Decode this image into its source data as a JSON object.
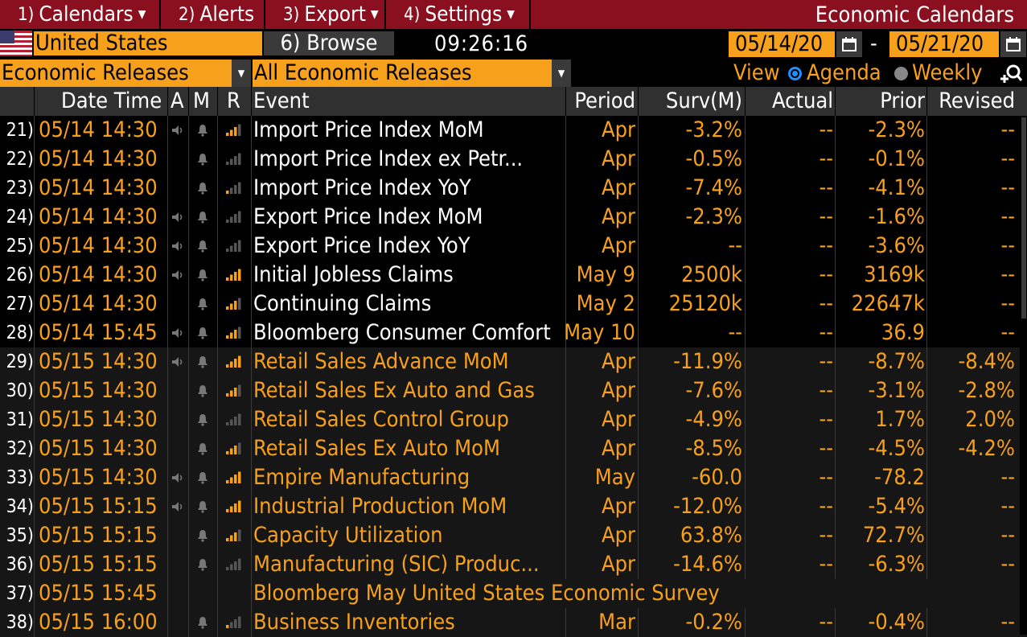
{
  "menubar": {
    "items": [
      {
        "num": "1)",
        "label": "Calendars",
        "caret": true
      },
      {
        "num": "2)",
        "label": "Alerts",
        "caret": false
      },
      {
        "num": "3)",
        "label": "Export",
        "caret": true
      },
      {
        "num": "4)",
        "label": "Settings",
        "caret": true
      }
    ],
    "title": "Economic Calendars"
  },
  "toolbar": {
    "country": "United States",
    "browse": "6) Browse",
    "clock": "09:26:16",
    "date_from": "05/14/20",
    "date_to": "05/21/20",
    "date_dash": "-"
  },
  "filters": {
    "category": "Economic Releases",
    "subcategory": "All Economic Releases",
    "view_label": "View",
    "view_options": [
      {
        "label": "Agenda",
        "selected": true
      },
      {
        "label": "Weekly",
        "selected": false
      }
    ]
  },
  "colors": {
    "accent": "#f7a01c",
    "menubar": "#8a1020",
    "header_bg": "#303030"
  },
  "table": {
    "headers": {
      "datetime": "Date Time",
      "a": "A",
      "m": "M",
      "r": "R",
      "event": "Event",
      "period": "Period",
      "surv": "Surv(M)",
      "actual": "Actual",
      "prior": "Prior",
      "revised": "Revised"
    },
    "rows": [
      {
        "num": "21)",
        "datetime": "05/14 14:30",
        "alert": "speaker-icon",
        "bell": true,
        "rel": 3,
        "event": "Import Price Index MoM",
        "period": "Apr",
        "surv": "-3.2%",
        "actual": "--",
        "prior": "-2.3%",
        "revised": "--",
        "highlight": false
      },
      {
        "num": "22)",
        "datetime": "05/14 14:30",
        "alert": "",
        "bell": true,
        "rel": 0,
        "event": "Import Price Index ex Petr...",
        "period": "Apr",
        "surv": "-0.5%",
        "actual": "--",
        "prior": "-0.1%",
        "revised": "--",
        "highlight": false
      },
      {
        "num": "23)",
        "datetime": "05/14 14:30",
        "alert": "",
        "bell": true,
        "rel": 1,
        "event": "Import Price Index YoY",
        "period": "Apr",
        "surv": "-7.4%",
        "actual": "--",
        "prior": "-4.1%",
        "revised": "--",
        "highlight": false
      },
      {
        "num": "24)",
        "datetime": "05/14 14:30",
        "alert": "speaker-icon",
        "bell": true,
        "rel": 0,
        "event": "Export Price Index MoM",
        "period": "Apr",
        "surv": "-2.3%",
        "actual": "--",
        "prior": "-1.6%",
        "revised": "--",
        "highlight": false
      },
      {
        "num": "25)",
        "datetime": "05/14 14:30",
        "alert": "speaker-icon",
        "bell": true,
        "rel": 0,
        "event": "Export Price Index YoY",
        "period": "Apr",
        "surv": "--",
        "actual": "--",
        "prior": "-3.6%",
        "revised": "--",
        "highlight": false
      },
      {
        "num": "26)",
        "datetime": "05/14 14:30",
        "alert": "speaker-icon",
        "bell": true,
        "rel": 4,
        "event": "Initial Jobless Claims",
        "period": "May 9",
        "surv": "2500k",
        "actual": "--",
        "prior": "3169k",
        "revised": "--",
        "highlight": false
      },
      {
        "num": "27)",
        "datetime": "05/14 14:30",
        "alert": "",
        "bell": true,
        "rel": 3,
        "event": "Continuing Claims",
        "period": "May 2",
        "surv": "25120k",
        "actual": "--",
        "prior": "22647k",
        "revised": "--",
        "highlight": false
      },
      {
        "num": "28)",
        "datetime": "05/14 15:45",
        "alert": "speaker-icon",
        "bell": true,
        "rel": 3,
        "event": "Bloomberg Consumer Comfort",
        "period": "May 10",
        "surv": "--",
        "actual": "--",
        "prior": "36.9",
        "revised": "--",
        "highlight": false
      },
      {
        "num": "29)",
        "datetime": "05/15 14:30",
        "alert": "speaker-icon",
        "bell": true,
        "rel": 4,
        "event": "Retail Sales Advance MoM",
        "period": "Apr",
        "surv": "-11.9%",
        "actual": "--",
        "prior": "-8.7%",
        "revised": "-8.4%",
        "highlight": true
      },
      {
        "num": "30)",
        "datetime": "05/15 14:30",
        "alert": "",
        "bell": true,
        "rel": 3,
        "event": "Retail Sales Ex Auto and Gas",
        "period": "Apr",
        "surv": "-7.6%",
        "actual": "--",
        "prior": "-3.1%",
        "revised": "-2.8%",
        "highlight": true
      },
      {
        "num": "31)",
        "datetime": "05/15 14:30",
        "alert": "",
        "bell": true,
        "rel": 0,
        "event": "Retail Sales Control Group",
        "period": "Apr",
        "surv": "-4.9%",
        "actual": "--",
        "prior": "1.7%",
        "revised": "2.0%",
        "highlight": true
      },
      {
        "num": "32)",
        "datetime": "05/15 14:30",
        "alert": "",
        "bell": true,
        "rel": 3,
        "event": "Retail Sales Ex Auto MoM",
        "period": "Apr",
        "surv": "-8.5%",
        "actual": "--",
        "prior": "-4.5%",
        "revised": "-4.2%",
        "highlight": true
      },
      {
        "num": "33)",
        "datetime": "05/15 14:30",
        "alert": "speaker-icon",
        "bell": true,
        "rel": 4,
        "event": "Empire Manufacturing",
        "period": "May",
        "surv": "-60.0",
        "actual": "--",
        "prior": "-78.2",
        "revised": "--",
        "highlight": true
      },
      {
        "num": "34)",
        "datetime": "05/15 15:15",
        "alert": "speaker-icon",
        "bell": true,
        "rel": 4,
        "event": "Industrial Production MoM",
        "period": "Apr",
        "surv": "-12.0%",
        "actual": "--",
        "prior": "-5.4%",
        "revised": "--",
        "highlight": true
      },
      {
        "num": "35)",
        "datetime": "05/15 15:15",
        "alert": "",
        "bell": true,
        "rel": 3,
        "event": "Capacity Utilization",
        "period": "Apr",
        "surv": "63.8%",
        "actual": "--",
        "prior": "72.7%",
        "revised": "--",
        "highlight": true
      },
      {
        "num": "36)",
        "datetime": "05/15 15:15",
        "alert": "",
        "bell": true,
        "rel": 0,
        "event": "Manufacturing (SIC) Produc...",
        "period": "Apr",
        "surv": "-14.6%",
        "actual": "--",
        "prior": "-6.3%",
        "revised": "--",
        "highlight": true
      },
      {
        "num": "37)",
        "datetime": "05/15 15:45",
        "alert": "",
        "bell": false,
        "rel": -1,
        "event": "Bloomberg May United States Economic Survey",
        "period": "",
        "surv": "",
        "actual": "",
        "prior": "",
        "revised": "",
        "highlight": true,
        "span": true
      },
      {
        "num": "38)",
        "datetime": "05/15 16:00",
        "alert": "",
        "bell": true,
        "rel": 1,
        "event": "Business Inventories",
        "period": "Mar",
        "surv": "-0.2%",
        "actual": "--",
        "prior": "-0.4%",
        "revised": "--",
        "highlight": true
      }
    ]
  }
}
